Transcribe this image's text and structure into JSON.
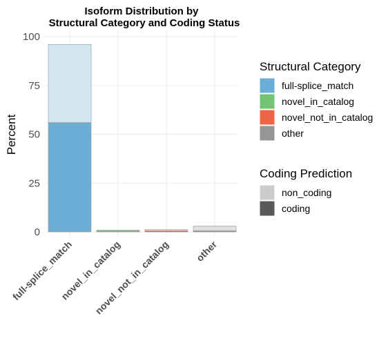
{
  "chart_data": {
    "type": "bar",
    "stacked": true,
    "title": [
      "Isoform Distribution by",
      "Structural Category and Coding Status"
    ],
    "xlabel": "",
    "ylabel": "Percent",
    "ylim": [
      0,
      100
    ],
    "yticks": [
      0,
      25,
      50,
      75,
      100
    ],
    "grid": true,
    "categories": [
      "full-splice_match",
      "novel_in_catalog",
      "novel_not_in_catalog",
      "other"
    ],
    "category_colors": {
      "full-splice_match": "#6baed6",
      "novel_in_catalog": "#74c476",
      "novel_not_in_catalog": "#ef6548",
      "other": "#969696"
    },
    "series": [
      {
        "name": "coding",
        "values": [
          56,
          0.6,
          0.6,
          0.6
        ]
      },
      {
        "name": "non_coding",
        "values": [
          40,
          0.3,
          0.6,
          2.4
        ]
      }
    ],
    "legends": [
      {
        "title": "Structural Category",
        "items": [
          {
            "label": "full-splice_match",
            "color": "#6baed6"
          },
          {
            "label": "novel_in_catalog",
            "color": "#74c476"
          },
          {
            "label": "novel_not_in_catalog",
            "color": "#ef6548"
          },
          {
            "label": "other",
            "color": "#969696"
          }
        ]
      },
      {
        "title": "Coding Prediction",
        "items": [
          {
            "label": "non_coding",
            "color": "#cccccc"
          },
          {
            "label": "coding",
            "color": "#595959"
          }
        ]
      }
    ],
    "legend_position": "right"
  }
}
